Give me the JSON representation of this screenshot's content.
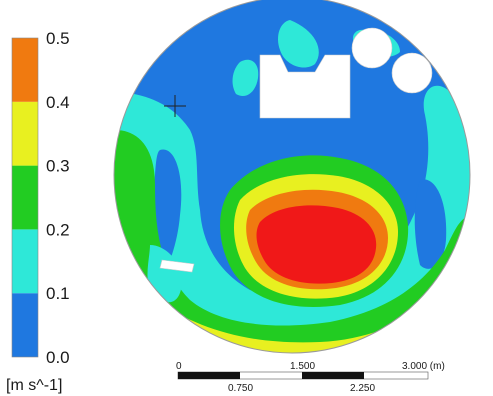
{
  "chart_data": {
    "type": "heatmap",
    "title": "",
    "legend": {
      "unit": "[m s^-1]",
      "ticks": [
        "0.0",
        "0.1",
        "0.2",
        "0.3",
        "0.4",
        "0.5"
      ],
      "bands": [
        {
          "from": 0.0,
          "to": 0.1,
          "color": "#1f78e0"
        },
        {
          "from": 0.1,
          "to": 0.2,
          "color": "#2ee8d8"
        },
        {
          "from": 0.2,
          "to": 0.3,
          "color": "#22cc22"
        },
        {
          "from": 0.3,
          "to": 0.4,
          "color": "#e8f020"
        },
        {
          "from": 0.4,
          "to": 0.5,
          "color": "#f07a10"
        }
      ],
      "max_color": "#f01818"
    },
    "scale_bar": {
      "labels_top": [
        "0",
        "1.500",
        "3.000 (m)"
      ],
      "labels_bottom": [
        "0.750",
        "2.250"
      ]
    }
  }
}
